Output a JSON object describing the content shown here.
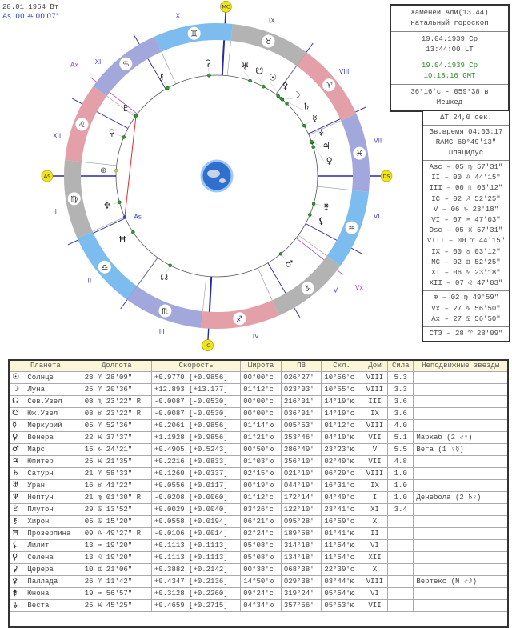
{
  "top_info": {
    "date": "28.01.1964 Вт",
    "as_label": "As",
    "as_value": "00 ♎ 00'07\""
  },
  "info_box": {
    "name": "Хаменеи Али(13.44)",
    "chart_type": "натальный гороскоп",
    "local_date": "19.04.1939 Ср",
    "local_time": "13:44:00 LT",
    "gmt_date": "19.04.1939 Ср",
    "gmt_time": "10:18:16 GMT",
    "coords": "36°16'с - 059°38'в",
    "place": "Мешхед"
  },
  "houses_box": {
    "delta_t": "ΔT  24,0 сек.",
    "sidereal": "Зв.время 04:03:17",
    "ramc": "RAMC 60°49'13\"",
    "system": "Плацидус",
    "cusps": [
      {
        "label": "Asc",
        "value": "05 ♍ 57'31\""
      },
      {
        "label": "II",
        "value": "00 ♎ 44'15\""
      },
      {
        "label": "III",
        "value": "00 ♏ 03'12\""
      },
      {
        "label": "IC",
        "value": "02 ♐ 52'25\""
      },
      {
        "label": "V",
        "value": "06 ♑ 23'18\""
      },
      {
        "label": "VI",
        "value": "07 ♒ 47'03\""
      },
      {
        "label": "Dsc",
        "value": "05 ♓ 57'31\""
      },
      {
        "label": "VIII",
        "value": "00 ♈ 44'15\""
      },
      {
        "label": "IX",
        "value": "00 ♉ 03'12\""
      },
      {
        "label": "MC",
        "value": "02 ♊ 52'25\""
      },
      {
        "label": "XI",
        "value": "06 ♋ 23'18\""
      },
      {
        "label": "XII",
        "value": "07 ♌ 47'03\""
      }
    ],
    "points": [
      {
        "label": "⊕",
        "value": "02 ♍ 49'59\""
      },
      {
        "label": "Vx",
        "value": "27 ♑ 56'50\""
      },
      {
        "label": "Ax",
        "value": "27 ♋ 56'50\""
      }
    ],
    "ste": {
      "label": "СТЭ",
      "value": "28 ♈ 28'09\""
    }
  },
  "wheel": {
    "signs": [
      "♈",
      "♉",
      "♊",
      "♋",
      "♌",
      "♍",
      "♎",
      "♏",
      "♐",
      "♑",
      "♒",
      "♓"
    ],
    "house_numerals": [
      "I",
      "II",
      "III",
      "IV",
      "V",
      "VI",
      "VII",
      "VIII",
      "IX",
      "X",
      "XI",
      "XII"
    ],
    "angle_labels": {
      "asc": "AS",
      "ic": "IC",
      "dsc": "DS",
      "mc": "MC"
    },
    "vertex_label": "Vx",
    "antivertex_label": "Ax",
    "as_point_label": "As",
    "colors": {
      "fire": "#e3a0a8",
      "earth": "#b3b3b3",
      "air": "#7cbcee",
      "water": "#a2a7dc",
      "cusp": "#2a2aa0",
      "vertex": "#c040c0",
      "aspect": "#e03030",
      "dot": "#2f9e2f",
      "angle_marker": "#f2e41c"
    }
  },
  "table": {
    "headers": [
      "Планета",
      "Долгота",
      "Скорость",
      "Широта",
      "ПВ",
      "Скл.",
      "Дом",
      "Сила",
      "Неподвижные звезды"
    ],
    "rows": [
      {
        "glyph": "☉",
        "name": "Солнце",
        "lon": "28 ♈ 28'09\"",
        "speed": "+0.9770 [+0.9856]",
        "lat": "00°00'с",
        "ra": "026°27'",
        "decl": "10°56'с",
        "house": "VIII",
        "power": "5.3",
        "star": ""
      },
      {
        "glyph": "☽",
        "name": "Луна",
        "lon": "25 ♈ 20'36\"",
        "speed": "+12.893 [+13.177]",
        "lat": "01°12'с",
        "ra": "023°03'",
        "decl": "10°55'с",
        "house": "VIII",
        "power": "3.3",
        "star": ""
      },
      {
        "glyph": "☊",
        "name": "Сев.Узел",
        "lon": "08 ♏ 23'22\" R",
        "speed": "-0.0087 [-0.0530]",
        "lat": "00°00'с",
        "ra": "216°01'",
        "decl": "14°19'ю",
        "house": "III",
        "power": "3.6",
        "star": ""
      },
      {
        "glyph": "☋",
        "name": "Юж.Узел",
        "lon": "08 ♉ 23'22\" R",
        "speed": "-0.0087 [-0.0530]",
        "lat": "00°00'с",
        "ra": "036°01'",
        "decl": "14°19'с",
        "house": "IX",
        "power": "3.6",
        "star": ""
      },
      {
        "glyph": "☿",
        "name": "Меркурий",
        "lon": "05 ♈ 52'36\"",
        "speed": "+0.2061 [+0.9856]",
        "lat": "01°14'ю",
        "ra": "005°53'",
        "decl": "01°12'с",
        "house": "VIII",
        "power": "4.0",
        "star": ""
      },
      {
        "glyph": "♀",
        "name": "Венера",
        "lon": "22 ♓ 37'37\"",
        "speed": "+1.1928 [+0.9856]",
        "lat": "01°21'ю",
        "ra": "353°46'",
        "decl": "04°10'ю",
        "house": "VII",
        "power": "5.1",
        "star": "Маркаб (2 ♂♀)"
      },
      {
        "glyph": "♂",
        "name": "Марс",
        "lon": "15 ♑ 24'21\"",
        "speed": "+0.4905 [+0.5243]",
        "lat": "00°50'ю",
        "ra": "286°49'",
        "decl": "23°23'ю",
        "house": "V",
        "power": "5.5",
        "star": "Вега (1 ♀☿)"
      },
      {
        "glyph": "♃",
        "name": "Юпитер",
        "lon": "25 ♓ 21'35\"",
        "speed": "+0.2216 [+0.0833]",
        "lat": "01°03'ю",
        "ra": "356°10'",
        "decl": "02°49'ю",
        "house": "VII",
        "power": "4.8",
        "star": ""
      },
      {
        "glyph": "♄",
        "name": "Сатурн",
        "lon": "21 ♈ 58'33\"",
        "speed": "+0.1260 [+0.0337]",
        "lat": "02°15'ю",
        "ra": "021°10'",
        "decl": "06°29'с",
        "house": "VIII",
        "power": "1.0",
        "star": ""
      },
      {
        "glyph": "♅",
        "name": "Уран",
        "lon": "16 ♉ 41'22\"",
        "speed": "+0.0556 [+0.0117]",
        "lat": "00°19'ю",
        "ra": "044°19'",
        "decl": "16°31'с",
        "house": "IX",
        "power": "1.0",
        "star": ""
      },
      {
        "glyph": "♆",
        "name": "Нептун",
        "lon": "21 ♍ 01'30\" R",
        "speed": "-0.0208 [+0.0060]",
        "lat": "01°12'с",
        "ra": "172°14'",
        "decl": "04°40'с",
        "house": "I",
        "power": "1.0",
        "star": "Денебола (2 ♄♀)"
      },
      {
        "glyph": "♇",
        "name": "Плутон",
        "lon": "29 ♋ 13'52\"",
        "speed": "+0.0029 [+0.0040]",
        "lat": "03°26'с",
        "ra": "122°10'",
        "decl": "23°41'с",
        "house": "XI",
        "power": "3.4",
        "star": ""
      },
      {
        "glyph": "⚷",
        "name": "Хирон",
        "lon": "05 ♋ 15'20\"",
        "speed": "+0.0558 [+0.0194]",
        "lat": "06°21'ю",
        "ra": "095°28'",
        "decl": "16°59'с",
        "house": "X",
        "power": "",
        "star": "",
        "group": true
      },
      {
        "glyph": "Ħ",
        "name": "Прозерпина",
        "lon": "09 ♎ 49'27\" R",
        "speed": "-0.0106 [+0.0014]",
        "lat": "02°24'с",
        "ra": "189°58'",
        "decl": "01°41'ю",
        "house": "II",
        "power": "",
        "star": ""
      },
      {
        "glyph": "⚸",
        "name": "Лилит",
        "lon": "13 ♒ 19'20\"",
        "speed": "+0.1113 [+0.1113]",
        "lat": "05°08'с",
        "ra": "314°18'",
        "decl": "11°54'ю",
        "house": "VI",
        "power": "",
        "star": "",
        "group": true
      },
      {
        "glyph": "⚲",
        "name": "Селена",
        "lon": "13 ♌ 19'20\"",
        "speed": "+0.1113 [+0.1113]",
        "lat": "05°08'ю",
        "ra": "134°18'",
        "decl": "11°54'с",
        "house": "XII",
        "power": "",
        "star": ""
      },
      {
        "glyph": "⚳",
        "name": "Церера",
        "lon": "10 ♊ 21'06\"",
        "speed": "+0.3882 [+0.2142]",
        "lat": "00°38'с",
        "ra": "068°38'",
        "decl": "22°39'с",
        "house": "X",
        "power": "",
        "star": "",
        "group": true
      },
      {
        "glyph": "⚴",
        "name": "Паллада",
        "lon": "26 ♈ 11'42\"",
        "speed": "+0.4347 [+0.2136]",
        "lat": "14°50'ю",
        "ra": "029°38'",
        "decl": "03°44'ю",
        "house": "VIII",
        "power": "",
        "star": "Вертекс (N ♂☽)"
      },
      {
        "glyph": "⚵",
        "name": "Юнона",
        "lon": "19 ♒ 56'57\"",
        "speed": "+0.3128 [+0.2260]",
        "lat": "09°24'с",
        "ra": "319°24'",
        "decl": "05°54'ю",
        "house": "VI",
        "power": "",
        "star": ""
      },
      {
        "glyph": "⚶",
        "name": "Веста",
        "lon": "25 ♓ 45'25\"",
        "speed": "+0.4659 [+0.2715]",
        "lat": "04°34'ю",
        "ra": "357°56'",
        "decl": "05°53'ю",
        "house": "VII",
        "power": "",
        "star": ""
      }
    ]
  }
}
